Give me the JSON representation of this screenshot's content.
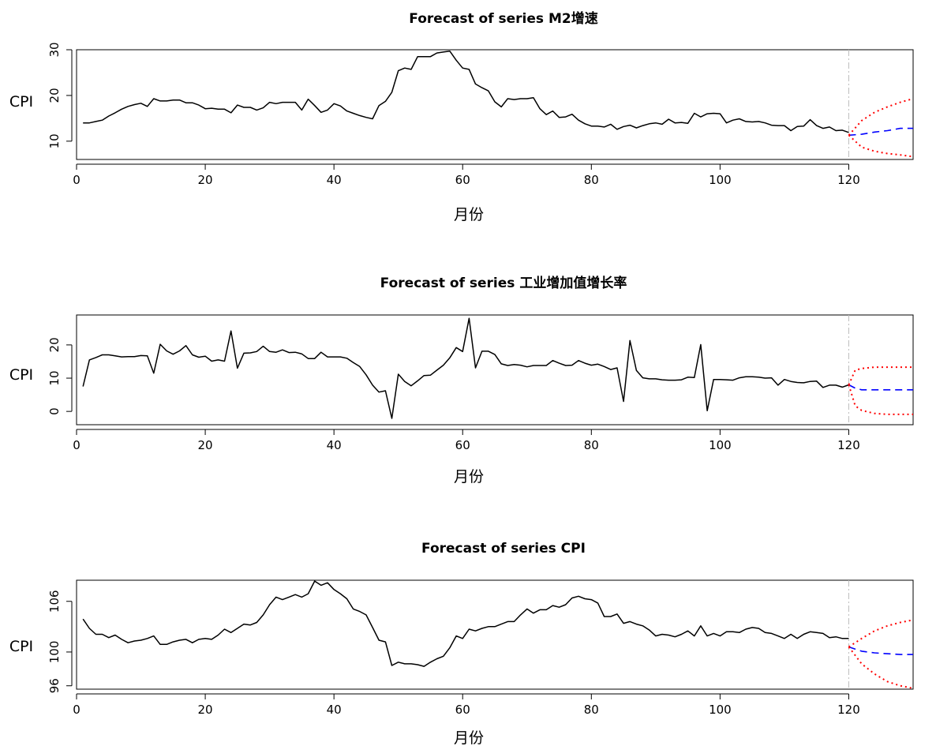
{
  "chart_data": [
    {
      "type": "line",
      "title": "Forecast of series M2增速",
      "xlabel": "月份",
      "ylabel": "CPI",
      "xlim": [
        0,
        130
      ],
      "ylim": [
        6,
        30
      ],
      "xticks": [
        0,
        20,
        40,
        60,
        80,
        100,
        120
      ],
      "yticks": [
        10,
        20,
        30
      ],
      "forecast_origin": 120,
      "colors": {
        "actual": "#000000",
        "forecast": "#0000ff",
        "bounds": "#ff0000",
        "origin_line": "#bebebe"
      },
      "series": [
        {
          "x": [
            1,
            2,
            3,
            4,
            5,
            6,
            7,
            8,
            9,
            10,
            11,
            12,
            13,
            14,
            15,
            16,
            17,
            18,
            19,
            20,
            21,
            22,
            23,
            24,
            25,
            26,
            27,
            28,
            29,
            30,
            31,
            32,
            33,
            34,
            35,
            36,
            37,
            38,
            39,
            40,
            41,
            42,
            43,
            44,
            45,
            46,
            47,
            48,
            49,
            50,
            51,
            52,
            53,
            54,
            55,
            56,
            57,
            58,
            59,
            60,
            61,
            62,
            63,
            64,
            65,
            66,
            67,
            68,
            69,
            70,
            71,
            72,
            73,
            74,
            75,
            76,
            77,
            78,
            79,
            80,
            81,
            82,
            83,
            84,
            85,
            86,
            87,
            88,
            89,
            90,
            91,
            92,
            93,
            94,
            95,
            96,
            97,
            98,
            99,
            100,
            101,
            102,
            103,
            104,
            105,
            106,
            107,
            108,
            109,
            110,
            111,
            112,
            113,
            114,
            115,
            116,
            117,
            118,
            119,
            120
          ],
          "values": [
            14,
            14,
            14.3,
            14.6,
            15.5,
            16.2,
            17,
            17.6,
            18,
            18.3,
            17.6,
            19.3,
            18.8,
            18.8,
            19,
            19,
            18.4,
            18.4,
            17.9,
            17.1,
            17.2,
            17,
            17,
            16.2,
            17.9,
            17.4,
            17.4,
            16.8,
            17.3,
            18.5,
            18.2,
            18.5,
            18.5,
            18.5,
            16.8,
            19.2,
            17.8,
            16.3,
            16.8,
            18.2,
            17.7,
            16.6,
            16.1,
            15.6,
            15.2,
            14.9,
            17.8,
            18.7,
            20.7,
            25.4,
            26,
            25.7,
            28.5,
            28.5,
            28.5,
            29.3,
            29.5,
            29.7,
            27.7,
            26,
            25.7,
            22.5,
            21.7,
            21,
            18.6,
            17.5,
            19.3,
            19.1,
            19.3,
            19.3,
            19.5,
            17.1,
            15.8,
            16.6,
            15.2,
            15.3,
            15.9,
            14.6,
            13.8,
            13.3,
            13.3,
            13.1,
            13.7,
            12.6,
            13.2,
            13.5,
            12.9,
            13.4,
            13.8,
            14,
            13.7,
            14.8,
            14,
            14.1,
            13.9,
            16.1,
            15.3,
            16,
            16.1,
            16,
            14,
            14.6,
            14.9,
            14.3,
            14.2,
            14.3,
            14,
            13.5,
            13.4,
            13.4,
            12.3,
            13.2,
            13.3,
            14.7,
            13.4,
            12.8,
            13.1,
            12.3,
            12.4,
            11.9
          ]
        },
        {
          "x": [
            120,
            122,
            124,
            126,
            128,
            130
          ],
          "values": [
            11.3,
            11.5,
            12,
            12.3,
            12.8,
            12.8
          ]
        },
        {
          "x": [
            120,
            122,
            124,
            126,
            128,
            130
          ],
          "values": [
            11.3,
            14.5,
            16.3,
            17.5,
            18.5,
            19.3
          ]
        },
        {
          "x": [
            120,
            122,
            124,
            126,
            128,
            130
          ],
          "values": [
            11.3,
            8.7,
            7.8,
            7.3,
            7,
            6.6
          ]
        }
      ]
    },
    {
      "type": "line",
      "title": "Forecast of series 工业增加值增长率",
      "xlabel": "月份",
      "ylabel": "CPI",
      "xlim": [
        0,
        130
      ],
      "ylim": [
        -4,
        29
      ],
      "xticks": [
        0,
        20,
        40,
        60,
        80,
        100,
        120
      ],
      "yticks": [
        0,
        10,
        20
      ],
      "forecast_origin": 120,
      "colors": {
        "actual": "#000000",
        "forecast": "#0000ff",
        "bounds": "#ff0000",
        "origin_line": "#bebebe"
      },
      "series": [
        {
          "x": [
            1,
            2,
            3,
            4,
            5,
            6,
            7,
            8,
            9,
            10,
            11,
            12,
            13,
            14,
            15,
            16,
            17,
            18,
            19,
            20,
            21,
            22,
            23,
            24,
            25,
            26,
            27,
            28,
            29,
            30,
            31,
            32,
            33,
            34,
            35,
            36,
            37,
            38,
            39,
            40,
            41,
            42,
            43,
            44,
            45,
            46,
            47,
            48,
            49,
            50,
            51,
            52,
            53,
            54,
            55,
            56,
            57,
            58,
            59,
            60,
            61,
            62,
            63,
            64,
            65,
            66,
            67,
            68,
            69,
            70,
            71,
            72,
            73,
            74,
            75,
            76,
            77,
            78,
            79,
            80,
            81,
            82,
            83,
            84,
            85,
            86,
            87,
            88,
            89,
            90,
            91,
            92,
            93,
            94,
            95,
            96,
            97,
            98,
            99,
            100,
            101,
            102,
            103,
            104,
            105,
            106,
            107,
            108,
            109,
            110,
            111,
            112,
            113,
            114,
            115,
            116,
            117,
            118,
            119,
            120
          ],
          "values": [
            7.5,
            15.5,
            16.2,
            17,
            17,
            16.7,
            16.4,
            16.5,
            16.5,
            16.8,
            16.7,
            11.5,
            20.2,
            18.2,
            17.2,
            18.2,
            19.8,
            17,
            16.3,
            16.6,
            15.1,
            15.5,
            15.1,
            24.2,
            13,
            17.5,
            17.6,
            18,
            19.6,
            18,
            17.8,
            18.5,
            17.7,
            17.8,
            17.3,
            15.9,
            15.9,
            17.8,
            16.4,
            16.4,
            16.4,
            16,
            14.7,
            13.5,
            11,
            7.9,
            5.8,
            6.2,
            -2.1,
            11.2,
            9,
            7.7,
            9.2,
            10.8,
            10.9,
            12.4,
            13.9,
            16.1,
            19.2,
            18,
            28,
            13.1,
            18.1,
            18.1,
            17.1,
            14.3,
            13.8,
            14.1,
            13.9,
            13.4,
            13.8,
            13.8,
            13.8,
            15.3,
            14.5,
            13.8,
            13.9,
            15.3,
            14.5,
            13.9,
            14.2,
            13.5,
            12.6,
            13.1,
            3,
            21.3,
            12.3,
            10.1,
            9.8,
            9.8,
            9.5,
            9.4,
            9.4,
            9.5,
            10.3,
            10.2,
            20.1,
            0.2,
            9.6,
            9.6,
            9.5,
            9.4,
            10.1,
            10.4,
            10.4,
            10.3,
            10,
            10.1,
            7.9,
            9.6,
            9,
            8.7,
            8.6,
            9,
            9.1,
            7.2,
            7.9,
            7.9,
            7.3,
            8
          ]
        },
        {
          "x": [
            120,
            121,
            122,
            124,
            126,
            128,
            130
          ],
          "values": [
            8,
            7,
            6.5,
            6.5,
            6.5,
            6.5,
            6.5
          ]
        },
        {
          "x": [
            120,
            121,
            122,
            124,
            126,
            128,
            130
          ],
          "values": [
            8,
            12.4,
            12.9,
            13.3,
            13.3,
            13.3,
            13.3
          ]
        },
        {
          "x": [
            120,
            121,
            122,
            124,
            126,
            128,
            130
          ],
          "values": [
            8,
            1.7,
            0.3,
            -0.6,
            -0.9,
            -0.9,
            -0.9
          ]
        }
      ]
    },
    {
      "type": "line",
      "title": "Forecast of series CPI",
      "xlabel": "月份",
      "ylabel": "CPI",
      "xlim": [
        0,
        130
      ],
      "ylim": [
        95.6,
        108.5
      ],
      "xticks": [
        0,
        20,
        40,
        60,
        80,
        100,
        120
      ],
      "yticks": [
        96,
        100,
        106
      ],
      "forecast_origin": 120,
      "colors": {
        "actual": "#000000",
        "forecast": "#0000ff",
        "bounds": "#ff0000",
        "origin_line": "#bebebe"
      },
      "series": [
        {
          "x": [
            1,
            2,
            3,
            4,
            5,
            6,
            7,
            8,
            9,
            10,
            11,
            12,
            13,
            14,
            15,
            16,
            17,
            18,
            19,
            20,
            21,
            22,
            23,
            24,
            25,
            26,
            27,
            28,
            29,
            30,
            31,
            32,
            33,
            34,
            35,
            36,
            37,
            38,
            39,
            40,
            41,
            42,
            43,
            44,
            45,
            46,
            47,
            48,
            49,
            50,
            51,
            52,
            53,
            54,
            55,
            56,
            57,
            58,
            59,
            60,
            61,
            62,
            63,
            64,
            65,
            66,
            67,
            68,
            69,
            70,
            71,
            72,
            73,
            74,
            75,
            76,
            77,
            78,
            79,
            80,
            81,
            82,
            83,
            84,
            85,
            86,
            87,
            88,
            89,
            90,
            91,
            92,
            93,
            94,
            95,
            96,
            97,
            98,
            99,
            100,
            101,
            102,
            103,
            104,
            105,
            106,
            107,
            108,
            109,
            110,
            111,
            112,
            113,
            114,
            115,
            116,
            117,
            118,
            119,
            120
          ],
          "values": [
            103.9,
            102.8,
            102.1,
            102.1,
            101.7,
            102,
            101.5,
            101.1,
            101.3,
            101.4,
            101.6,
            101.9,
            100.9,
            100.9,
            101.2,
            101.4,
            101.5,
            101.1,
            101.5,
            101.6,
            101.5,
            102,
            102.7,
            102.3,
            102.8,
            103.3,
            103.2,
            103.5,
            104.4,
            105.6,
            106.5,
            106.2,
            106.5,
            106.8,
            106.5,
            106.9,
            108.4,
            107.9,
            108.2,
            107.4,
            106.9,
            106.3,
            105.1,
            104.8,
            104.4,
            102.9,
            101.4,
            101.2,
            98.4,
            98.8,
            98.6,
            98.6,
            98.5,
            98.3,
            98.8,
            99.2,
            99.5,
            100.5,
            101.9,
            101.6,
            102.7,
            102.5,
            102.8,
            103,
            103,
            103.3,
            103.6,
            103.6,
            104.4,
            105.1,
            104.6,
            105,
            105,
            105.5,
            105.3,
            105.6,
            106.4,
            106.6,
            106.3,
            106.2,
            105.8,
            104.2,
            104.2,
            104.5,
            103.4,
            103.6,
            103.3,
            103.1,
            102.6,
            101.9,
            102.1,
            102,
            101.8,
            102.1,
            102.5,
            101.9,
            103.1,
            101.9,
            102.2,
            101.9,
            102.4,
            102.4,
            102.3,
            102.7,
            102.9,
            102.8,
            102.3,
            102.2,
            101.9,
            101.6,
            102.1,
            101.6,
            102.1,
            102.4,
            102.3,
            102.2,
            101.7,
            101.8,
            101.6,
            101.6
          ]
        },
        {
          "x": [
            120,
            122,
            124,
            126,
            128,
            130
          ],
          "values": [
            100.6,
            100.1,
            99.9,
            99.8,
            99.7,
            99.7
          ]
        },
        {
          "x": [
            120,
            122,
            124,
            126,
            128,
            130
          ],
          "values": [
            100.6,
            101.6,
            102.5,
            103.1,
            103.5,
            103.8
          ]
        },
        {
          "x": [
            120,
            122,
            124,
            126,
            128,
            130
          ],
          "values": [
            100.6,
            98.6,
            97.4,
            96.5,
            96,
            95.7
          ]
        }
      ]
    }
  ]
}
